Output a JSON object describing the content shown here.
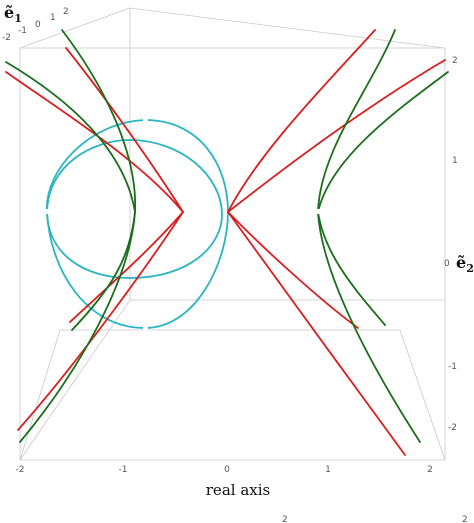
{
  "chart_data": {
    "type": "3d-curve-plot",
    "axes": {
      "x": {
        "label": "real axis",
        "ticks": [
          "-2",
          "-1",
          "0",
          "1",
          "2"
        ],
        "range": [
          -2,
          2
        ]
      },
      "y": {
        "label": "ẽ₂",
        "label_main": "ẽ",
        "label_sub": "2",
        "ticks": [
          "-2",
          "-1",
          "0",
          "1",
          "2"
        ],
        "range": [
          -2,
          2
        ]
      },
      "z": {
        "label": "ẽ₁",
        "label_main": "ẽ",
        "label_sub": "1",
        "ticks": [
          "-2",
          "-1",
          "0",
          "1",
          "2"
        ],
        "range": [
          -2,
          2
        ]
      }
    },
    "colors": {
      "red": "#d81e1e",
      "green": "#1b6e1b",
      "cyan": "#2ab5c0",
      "box": "#c9c9c9"
    },
    "series": [
      {
        "color": "red",
        "kind": "hyperbola-branch",
        "vertex_x": -0.45,
        "opens": "left"
      },
      {
        "color": "red",
        "kind": "hyperbola-branch",
        "vertex_x": 0.0,
        "opens": "right"
      },
      {
        "color": "green",
        "kind": "hyperbola-branch",
        "vertex_x": -0.85,
        "opens": "left"
      },
      {
        "color": "green",
        "kind": "hyperbola-branch",
        "vertex_x": 0.9,
        "opens": "right"
      },
      {
        "color": "cyan",
        "kind": "closed-loop",
        "center_x": -0.9
      }
    ]
  },
  "page_marks": {
    "bottom_fragment": "2",
    "bottom_fragment_right": "2"
  }
}
